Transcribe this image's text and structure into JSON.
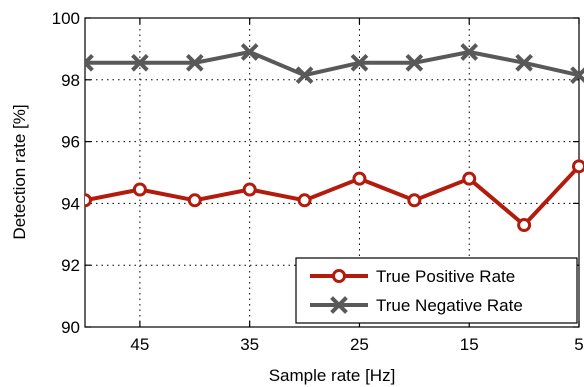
{
  "chart_data": {
    "type": "line",
    "title": "",
    "xlabel": "Sample rate [Hz]",
    "ylabel": "Detection rate [%]",
    "x_reversed": true,
    "xlim": [
      50,
      5
    ],
    "ylim": [
      90,
      100
    ],
    "x_ticks": [
      45,
      35,
      25,
      15,
      5
    ],
    "y_ticks": [
      90,
      92,
      94,
      96,
      98,
      100
    ],
    "grid": true,
    "legend_position": "bottom-right",
    "x": [
      50,
      45,
      40,
      35,
      30,
      25,
      20,
      15,
      10,
      5
    ],
    "series": [
      {
        "name": "True Positive Rate",
        "marker": "circle",
        "color": "#b31b0c",
        "values": [
          94.1,
          94.45,
          94.1,
          94.45,
          94.1,
          94.8,
          94.1,
          94.8,
          93.3,
          95.2
        ]
      },
      {
        "name": "True Negative Rate",
        "marker": "x",
        "color": "#595959",
        "values": [
          98.55,
          98.55,
          98.55,
          98.9,
          98.15,
          98.55,
          98.55,
          98.9,
          98.55,
          98.15
        ]
      }
    ]
  }
}
